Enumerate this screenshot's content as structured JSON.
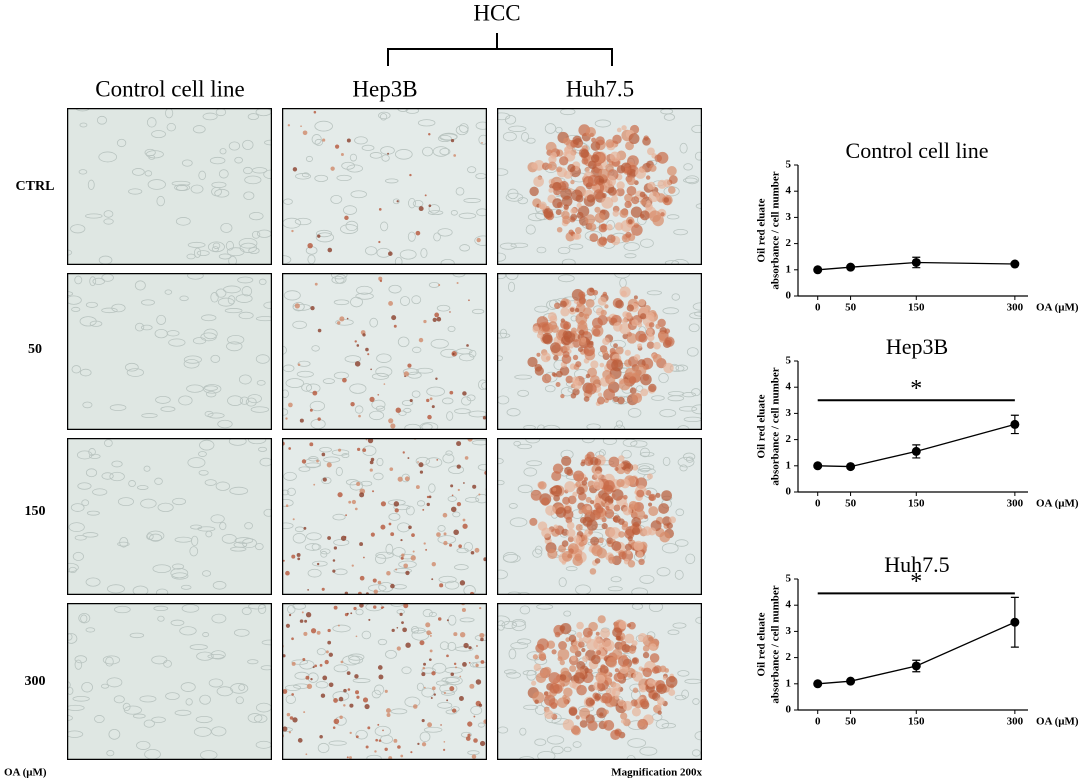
{
  "figure": {
    "group_label": "HCC",
    "column_labels": [
      "Control cell line",
      "Hep3B",
      "Huh7.5"
    ],
    "row_labels": [
      "CTRL",
      "50",
      "150",
      "300"
    ],
    "row_axis_label": "OA (μM)",
    "magnification": "Magnification 200x"
  },
  "chart_data": [
    {
      "type": "line",
      "title": "Control cell line",
      "ylabel": [
        "Oil red eluate",
        "absorbance / cell number"
      ],
      "xlabel": "OA (μM)",
      "x": [
        0,
        50,
        150,
        300
      ],
      "xlim": [
        -30,
        320
      ],
      "xticks": [
        0,
        50,
        150,
        300
      ],
      "ylim": [
        0,
        5
      ],
      "yticks": [
        0,
        1,
        2,
        3,
        4,
        5
      ],
      "series": [
        {
          "color": "#000000",
          "values": [
            1.0,
            1.1,
            1.28,
            1.22
          ],
          "errors": [
            0.03,
            0.05,
            0.2,
            0.05
          ]
        }
      ]
    },
    {
      "type": "line",
      "title": "Hep3B",
      "ylabel": [
        "Oil red eluate",
        "absorbance / cell number"
      ],
      "xlabel": "OA (μM)",
      "x": [
        0,
        50,
        150,
        300
      ],
      "xlim": [
        -30,
        320
      ],
      "xticks": [
        0,
        50,
        150,
        300
      ],
      "ylim": [
        0,
        5
      ],
      "yticks": [
        0,
        1,
        2,
        3,
        4,
        5
      ],
      "series": [
        {
          "color": "#000000",
          "values": [
            1.0,
            0.97,
            1.55,
            2.58
          ],
          "errors": [
            0.05,
            0.05,
            0.25,
            0.35
          ]
        }
      ],
      "significance": {
        "label": "*",
        "x": [
          0,
          300
        ],
        "y": 3.5
      }
    },
    {
      "type": "line",
      "title": "Huh7.5",
      "ylabel": [
        "Oil red eluate",
        "absorbance / cell number"
      ],
      "xlabel": "OA (μM)",
      "x": [
        0,
        50,
        150,
        300
      ],
      "xlim": [
        -30,
        320
      ],
      "xticks": [
        0,
        50,
        150,
        300
      ],
      "ylim": [
        0,
        5
      ],
      "yticks": [
        0,
        1,
        2,
        3,
        4,
        5
      ],
      "series": [
        {
          "color": "#000000",
          "values": [
            1.0,
            1.1,
            1.68,
            3.35
          ],
          "errors": [
            0.03,
            0.05,
            0.22,
            0.95
          ]
        }
      ],
      "significance": {
        "label": "*",
        "x": [
          0,
          300
        ],
        "y": 4.45
      }
    }
  ]
}
